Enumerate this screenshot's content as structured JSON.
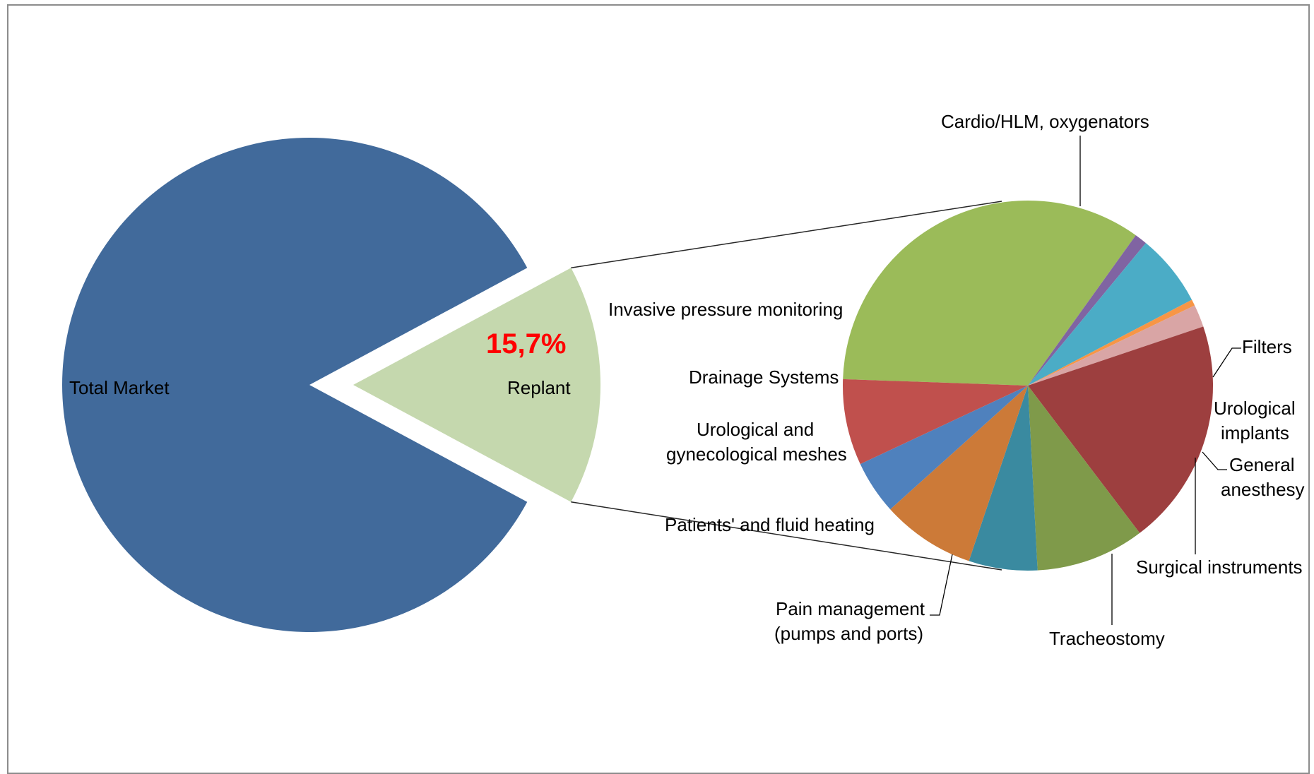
{
  "chart_data": {
    "type": "pie",
    "subtype": "pie-of-pie",
    "main_pie": {
      "slices": [
        {
          "label": "Total Market",
          "value": 84.3,
          "color": "#416a9b"
        },
        {
          "label": "Replant",
          "value": 15.7,
          "color": "#c5d8ae"
        }
      ],
      "highlight_label": "15,7%",
      "highlight_color": "#ff0000"
    },
    "secondary_pie": {
      "slices": [
        {
          "label": "Cardio/HLM, oxygenators",
          "value": 31.5,
          "color": "#9bbb59"
        },
        {
          "label": "Filters",
          "value": 1.0,
          "color": "#8064a2"
        },
        {
          "label": "Urological implants",
          "value": 5.8,
          "color": "#4bacc6"
        },
        {
          "label": "General anesthesy",
          "value": 0.5,
          "color": "#f79646"
        },
        {
          "label": "Surgical instruments",
          "value": 1.8,
          "color": "#d9a5a5"
        },
        {
          "label": "Tracheostomy",
          "value": 18.2,
          "color": "#9d3f3f"
        },
        {
          "label": "Pain management (pumps and ports)",
          "value": 8.7,
          "color": "#7f9a4a"
        },
        {
          "label": "Patients' and fluid heating",
          "value": 5.5,
          "color": "#3a8aa0"
        },
        {
          "label": "Urological and gynecological meshes",
          "value": 7.5,
          "color": "#cc7a38"
        },
        {
          "label": "Drainage Systems",
          "value": 4.3,
          "color": "#4f81bd"
        },
        {
          "label": "Invasive pressure monitoring",
          "value": 6.9,
          "color": "#c0504d"
        }
      ]
    },
    "labels": {
      "total_market": "Total Market",
      "replant": "Replant",
      "percent": "15,7%",
      "cardio": "Cardio/HLM, oxygenators",
      "filters": "Filters",
      "urological_implants": [
        "Urological",
        "implants"
      ],
      "general_anesthesy": [
        "General",
        "anesthesy"
      ],
      "surgical_instruments": "Surgical instruments",
      "tracheostomy": "Tracheostomy",
      "pain_management": [
        "Pain management",
        "(pumps and ports)"
      ],
      "fluid_heating": "Patients' and fluid heating",
      "meshes": [
        "Urological and",
        "gynecological meshes"
      ],
      "drainage": "Drainage Systems",
      "pressure_monitoring": "Invasive pressure monitoring"
    },
    "legend": "none"
  }
}
